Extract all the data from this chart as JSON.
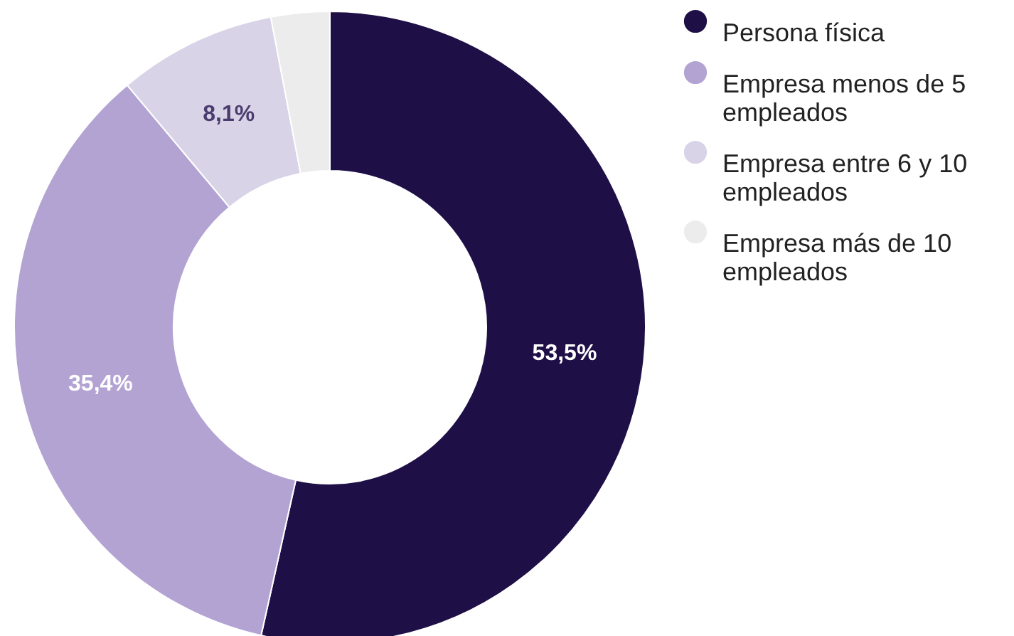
{
  "chart_data": {
    "type": "donut",
    "categories": [
      "Persona física",
      "Empresa menos de 5 empleados",
      "Empresa entre 6 y 10 empleados",
      "Empresa más de 10 empleados"
    ],
    "values": [
      53.5,
      35.4,
      8.1,
      3.0
    ],
    "colors": [
      "#1f0f47",
      "#b3a3d3",
      "#d9d3e8",
      "#ececec"
    ],
    "value_labels": [
      "53,5%",
      "35,4%",
      "8,1%",
      null
    ],
    "legend": "top right"
  }
}
